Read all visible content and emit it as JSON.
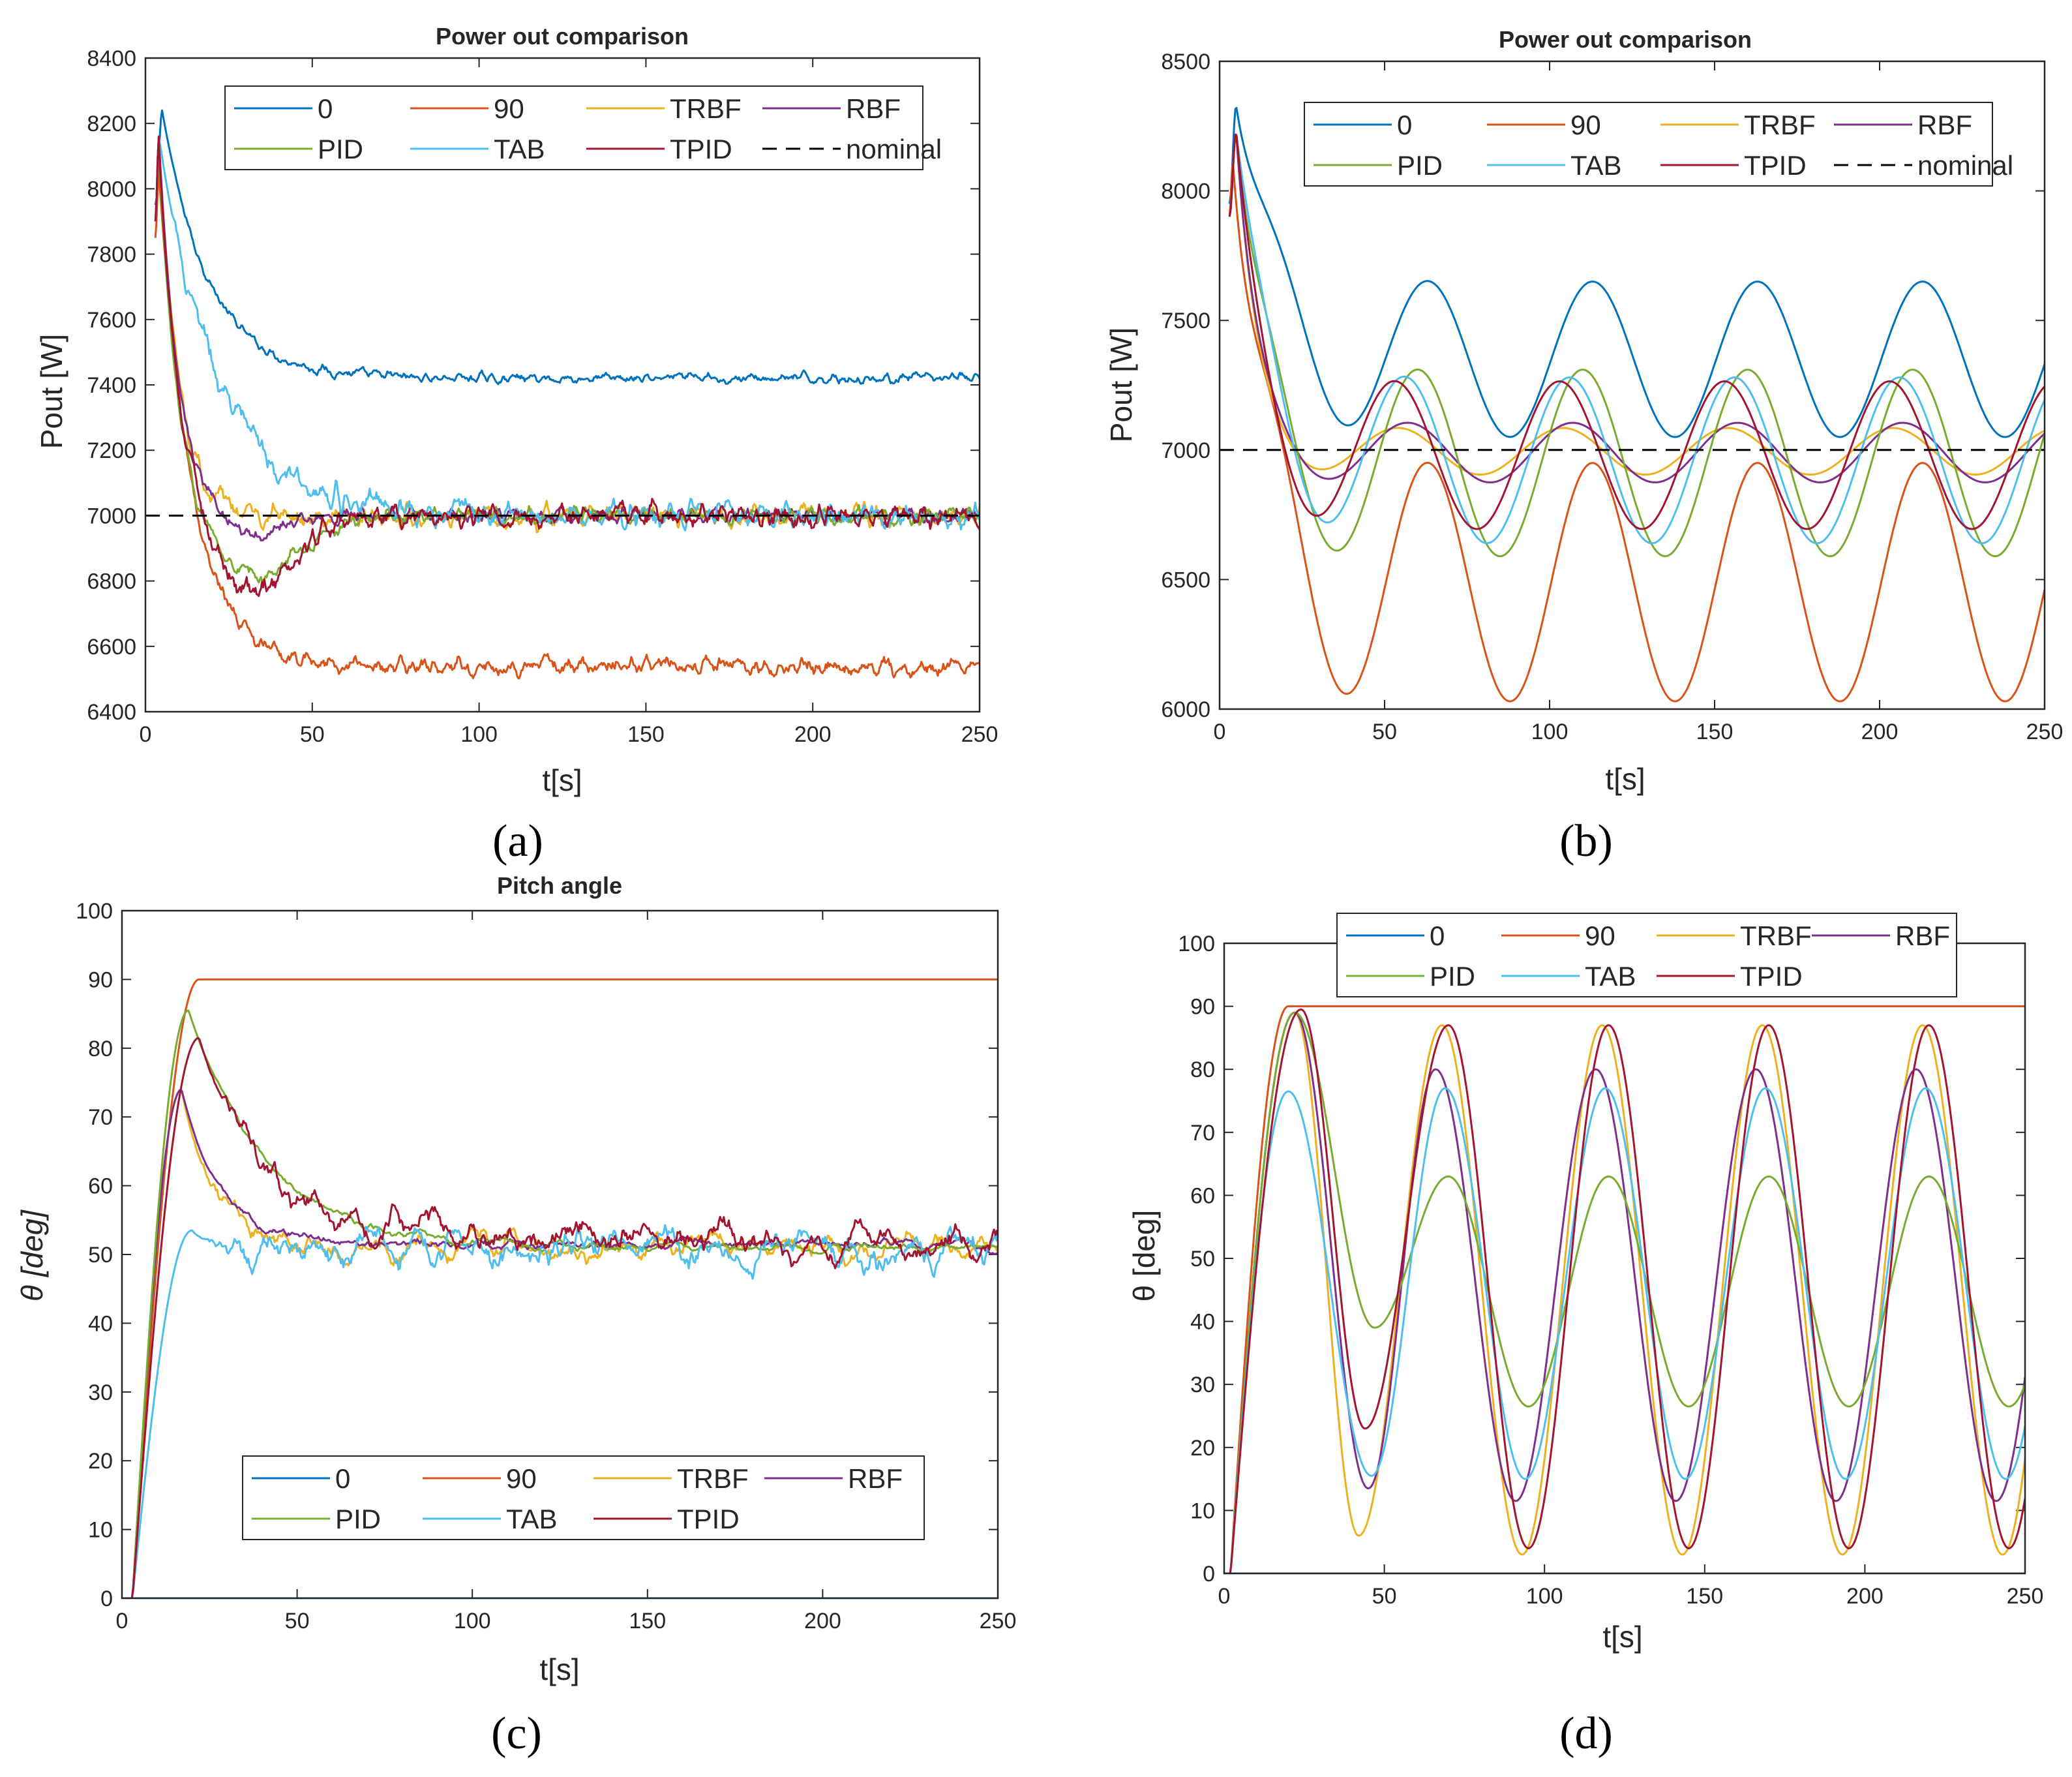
{
  "colors": {
    "0": "#0072BD",
    "90": "#D95319",
    "TRBF": "#EDB120",
    "RBF": "#7E2F8E",
    "PID": "#77AC30",
    "TAB": "#4DBEEE",
    "TPID": "#A2142F",
    "nominal": "#000000"
  },
  "chart_data": [
    {
      "panel": "a",
      "panel_label": "(a)",
      "type": "line",
      "title": "Power out comparison",
      "xlabel": "t[s]",
      "ylabel": "Pout [W]",
      "xlim": [
        0,
        250
      ],
      "ylim": [
        6400,
        8400
      ],
      "xticks": [
        0,
        50,
        100,
        150,
        200,
        250
      ],
      "yticks": [
        6400,
        6600,
        6800,
        7000,
        7200,
        7400,
        7600,
        7800,
        8000,
        8200,
        8400
      ],
      "legend": {
        "placement": "top",
        "columns": 4,
        "entries": [
          "0",
          "90",
          "TRBF",
          "RBF",
          "PID",
          "TAB",
          "TPID",
          "nominal"
        ]
      },
      "series": [
        {
          "name": "0",
          "start": 7950,
          "peak": 8240,
          "peak_t": 5,
          "final": 7420,
          "tau": 14,
          "noise": 10
        },
        {
          "name": "90",
          "start": 7850,
          "peak": 8050,
          "peak_t": 4,
          "final": 6540,
          "tau": 10,
          "noise": 18
        },
        {
          "name": "TRBF",
          "start": 7900,
          "peak": 8160,
          "peak_t": 4,
          "final": 7000,
          "tau": 6,
          "noise": 22
        },
        {
          "name": "RBF",
          "start": 7900,
          "peak": 8160,
          "peak_t": 4,
          "final": 7000,
          "tau": 6,
          "dip": -60,
          "dip_t": 30,
          "dip_w": 15,
          "noise": 15
        },
        {
          "name": "PID",
          "start": 7900,
          "peak": 8160,
          "peak_t": 4,
          "final": 7000,
          "tau": 6,
          "dip": -190,
          "dip_t": 30,
          "dip_w": 22,
          "noise": 16
        },
        {
          "name": "TAB",
          "start": 7900,
          "peak": 8160,
          "peak_t": 4,
          "final": 7000,
          "tau": 18,
          "noise": 25
        },
        {
          "name": "TPID",
          "start": 7900,
          "peak": 8160,
          "peak_t": 4,
          "final": 7000,
          "tau": 6,
          "dip": -240,
          "dip_t": 32,
          "dip_w": 18,
          "noise": 22
        },
        {
          "name": "nominal",
          "constant": 7000,
          "dashed": true
        }
      ]
    },
    {
      "panel": "b",
      "panel_label": "(b)",
      "type": "line",
      "title": "Power out comparison",
      "xlabel": "t[s]",
      "ylabel": "Pout [W]",
      "xlim": [
        0,
        250
      ],
      "ylim": [
        6000,
        8500
      ],
      "xticks": [
        0,
        50,
        100,
        150,
        200,
        250
      ],
      "yticks": [
        6000,
        6500,
        7000,
        7500,
        8000,
        8500
      ],
      "legend": {
        "placement": "top",
        "columns": 4,
        "entries": [
          "0",
          "90",
          "TRBF",
          "RBF",
          "PID",
          "TAB",
          "TPID",
          "nominal"
        ]
      },
      "series": [
        {
          "name": "0",
          "start": 7950,
          "peak": 8330,
          "peak_t": 5,
          "mean": 7350,
          "amp": 300,
          "period": 50,
          "first_max_t": 63,
          "tau": 10
        },
        {
          "name": "90",
          "start": 7900,
          "peak": 8120,
          "peak_t": 4,
          "mean": 6490,
          "amp": 460,
          "period": 50,
          "first_max_t": 63,
          "tau": 8
        },
        {
          "name": "TRBF",
          "start": 7900,
          "peak": 8230,
          "peak_t": 5,
          "mean": 6995,
          "amp": 90,
          "period": 50,
          "first_max_t": 54,
          "tau": 6
        },
        {
          "name": "RBF",
          "start": 7900,
          "peak": 8230,
          "peak_t": 5,
          "mean": 6990,
          "amp": 115,
          "period": 50,
          "first_max_t": 57,
          "tau": 6
        },
        {
          "name": "PID",
          "start": 7900,
          "peak": 8230,
          "peak_t": 5,
          "mean": 6950,
          "amp": 360,
          "period": 50,
          "first_max_t": 60,
          "tau": 7
        },
        {
          "name": "TAB",
          "start": 7900,
          "peak": 8230,
          "peak_t": 5,
          "mean": 6960,
          "amp": 320,
          "period": 50,
          "first_max_t": 56,
          "tau": 9
        },
        {
          "name": "TPID",
          "start": 7900,
          "peak": 8230,
          "peak_t": 5,
          "mean": 6980,
          "amp": 285,
          "period": 50,
          "first_max_t": 53,
          "tau": 7
        },
        {
          "name": "nominal",
          "constant": 7000,
          "dashed": true
        }
      ]
    },
    {
      "panel": "c",
      "panel_label": "(c)",
      "type": "line",
      "title": "Pitch angle",
      "xlabel": "t[s]",
      "ylabel": "θ [deg]",
      "xlim": [
        0,
        250
      ],
      "ylim": [
        0,
        100
      ],
      "xticks": [
        0,
        50,
        100,
        150,
        200,
        250
      ],
      "yticks": [
        0,
        10,
        20,
        30,
        40,
        50,
        60,
        70,
        80,
        90,
        100
      ],
      "legend": {
        "placement": "bottom",
        "columns": 4,
        "entries": [
          "0",
          "90",
          "TRBF",
          "RBF",
          "PID",
          "TAB",
          "TPID"
        ]
      },
      "series": [
        {
          "name": "0",
          "constant": 0
        },
        {
          "name": "90",
          "rise_t": 3,
          "peak": 90,
          "peak_t": 22,
          "final": 90
        },
        {
          "name": "TRBF",
          "rise_t": 3,
          "peak": 74,
          "peak_t": 17,
          "final": 51,
          "tau": 9,
          "noise": 1.5
        },
        {
          "name": "RBF",
          "rise_t": 3,
          "peak": 74,
          "peak_t": 17,
          "final": 51.5,
          "tau": 11,
          "noise": 0.6
        },
        {
          "name": "PID",
          "rise_t": 3,
          "peak": 85.5,
          "peak_t": 19,
          "final": 51,
          "tau": 22,
          "noise": 0.5
        },
        {
          "name": "TAB",
          "rise_t": 3,
          "peak": 53.5,
          "peak_t": 20,
          "final": 51,
          "tau": 4,
          "noise": 2.2
        },
        {
          "name": "TPID",
          "rise_t": 3,
          "peak": 81.5,
          "peak_t": 22,
          "final": 52,
          "tau": 17,
          "noise": 2.0
        }
      ]
    },
    {
      "panel": "d",
      "panel_label": "(d)",
      "type": "line",
      "title": "",
      "xlabel": "t[s]",
      "ylabel": "θ [deg]",
      "xlim": [
        0,
        250
      ],
      "ylim": [
        0,
        100
      ],
      "xticks": [
        0,
        50,
        100,
        150,
        200,
        250
      ],
      "yticks": [
        0,
        10,
        20,
        30,
        40,
        50,
        60,
        70,
        80,
        90,
        100
      ],
      "legend": {
        "placement": "top",
        "columns": 4,
        "entries": [
          "0",
          "90",
          "TRBF",
          "RBF",
          "PID",
          "TAB",
          "TPID"
        ]
      },
      "series": [
        {
          "name": "0",
          "constant": 0
        },
        {
          "name": "90",
          "rise_t": 2,
          "peak": 90,
          "peak_t": 20,
          "final": 90
        },
        {
          "name": "TRBF",
          "rise_t": 2,
          "first_peak": 89,
          "first_peak_t": 22,
          "max": 87,
          "min": 3,
          "period": 50,
          "first_max_t": 68,
          "first_min": 6,
          "first_min_t": 42
        },
        {
          "name": "RBF",
          "rise_t": 2,
          "first_peak": 89,
          "first_peak_t": 22,
          "max": 80,
          "min": 11.5,
          "period": 50,
          "first_max_t": 66,
          "first_min": 13.5,
          "first_min_t": 45
        },
        {
          "name": "PID",
          "rise_t": 2,
          "first_peak": 89,
          "first_peak_t": 22,
          "max": 63,
          "min": 26.5,
          "period": 50,
          "first_max_t": 70,
          "first_min": 39,
          "first_min_t": 47
        },
        {
          "name": "TAB",
          "rise_t": 2,
          "first_peak": 76.5,
          "first_peak_t": 20,
          "max": 77,
          "min": 15,
          "period": 50,
          "first_max_t": 69,
          "first_min": 15.5,
          "first_min_t": 46
        },
        {
          "name": "TPID",
          "rise_t": 2,
          "first_peak": 89.5,
          "first_peak_t": 24,
          "max": 87,
          "min": 4,
          "period": 50,
          "first_max_t": 70,
          "first_min": 23,
          "first_min_t": 44
        }
      ]
    }
  ]
}
